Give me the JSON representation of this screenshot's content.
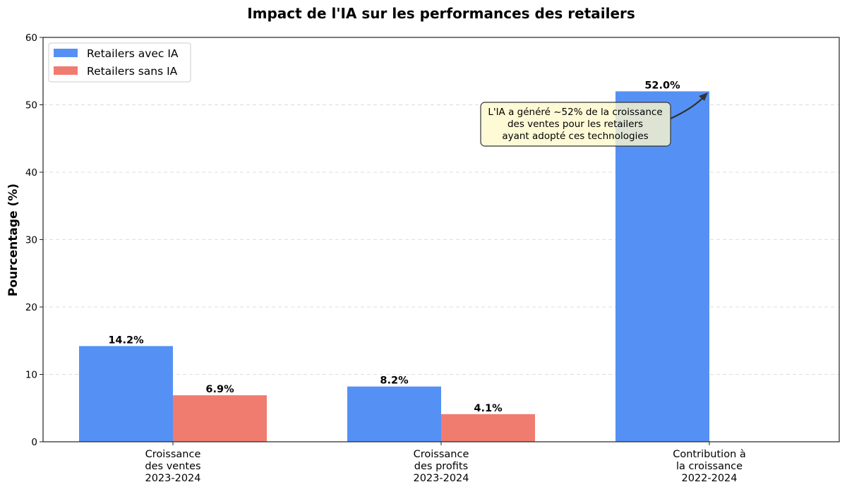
{
  "chart_data": {
    "type": "bar",
    "title": "Impact de l'IA sur les performances des retailers",
    "xlabel": "",
    "ylabel": "Pourcentage (%)",
    "ylim": [
      0,
      60
    ],
    "yticks": [
      "0",
      "10",
      "20",
      "30",
      "40",
      "50",
      "60"
    ],
    "grid": "y-dashed",
    "legend_position": "top-left",
    "categories": [
      [
        "Croissance",
        "des ventes",
        "2023-2024"
      ],
      [
        "Croissance",
        "des profits",
        "2023-2024"
      ],
      [
        "Contribution à",
        "la croissance",
        "2022-2024"
      ]
    ],
    "series": [
      {
        "name": "Retailers avec IA",
        "color": "#5591F5",
        "values": [
          14.2,
          8.2,
          52.0
        ],
        "labels": [
          "14.2%",
          "8.2%",
          "52.0%"
        ]
      },
      {
        "name": "Retailers sans IA",
        "color": "#F07C70",
        "values": [
          6.9,
          4.1,
          null
        ],
        "labels": [
          "6.9%",
          "4.1%",
          null
        ]
      }
    ],
    "annotation": {
      "lines": [
        "L'IA a généré ~52% de la croissance",
        "des ventes pour les retailers",
        "ayant adopté ces technologies"
      ],
      "points_to": {
        "category": 2,
        "value": 52.0
      },
      "box_color": "#FFF9CC"
    }
  }
}
